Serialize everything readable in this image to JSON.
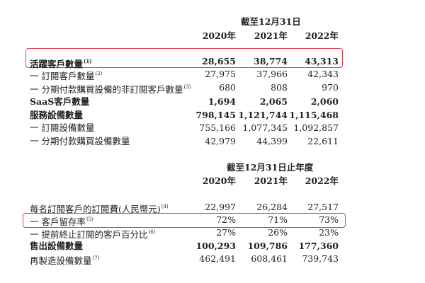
{
  "section1": {
    "header": "截至12月31日",
    "years": [
      "2020年",
      "2021年",
      "2022年"
    ],
    "rows": [
      {
        "label": "活躍客戶數量",
        "note": "(1)",
        "values": [
          "28,655",
          "38,774",
          "43,313"
        ],
        "bold": true,
        "highlighted": true
      },
      {
        "label": "一 訂閱客戶數量",
        "note": "(2)",
        "values": [
          "27,975",
          "37,966",
          "42,343"
        ]
      },
      {
        "label": "一 分期付款購買設備的非訂閱客戶數量",
        "note": "(3)",
        "values": [
          "680",
          "808",
          "970"
        ]
      },
      {
        "label": "SaaS客戶數量",
        "note": "",
        "values": [
          "1,694",
          "2,065",
          "2,060"
        ],
        "bold": true
      },
      {
        "label": "服務設備數量",
        "note": "",
        "values": [
          "798,145",
          "1,121,744",
          "1,115,468"
        ],
        "bold": true
      },
      {
        "label": "一 訂閱設備數量",
        "note": "",
        "values": [
          "755,166",
          "1,077,345",
          "1,092,857"
        ]
      },
      {
        "label": "一 分期付款購買設備數量",
        "note": "",
        "values": [
          "42,979",
          "44,399",
          "22,611"
        ]
      }
    ]
  },
  "section2": {
    "header": "截至12月31日止年度",
    "years": [
      "2020年",
      "2021年",
      "2022年"
    ],
    "rows": [
      {
        "label": "每名訂閱客戶的訂閱費(人民幣元)",
        "note": "(4)",
        "values": [
          "22,997",
          "26,284",
          "27,517"
        ]
      },
      {
        "label": "一 客戶留存率",
        "note": "(5)",
        "values": [
          "72%",
          "71%",
          "73%"
        ],
        "highlighted": true
      },
      {
        "label": "一 提前終止訂閱的客戶百分比",
        "note": "(6)",
        "values": [
          "27%",
          "26%",
          "23%"
        ]
      },
      {
        "label": "售出設備數量",
        "note": "",
        "values": [
          "100,293",
          "109,786",
          "177,360"
        ],
        "bold": true
      },
      {
        "label": "再製造設備數量",
        "note": "(7)",
        "values": [
          "462,491",
          "608,461",
          "739,743"
        ]
      }
    ]
  },
  "highlight_color": "#e0404a"
}
